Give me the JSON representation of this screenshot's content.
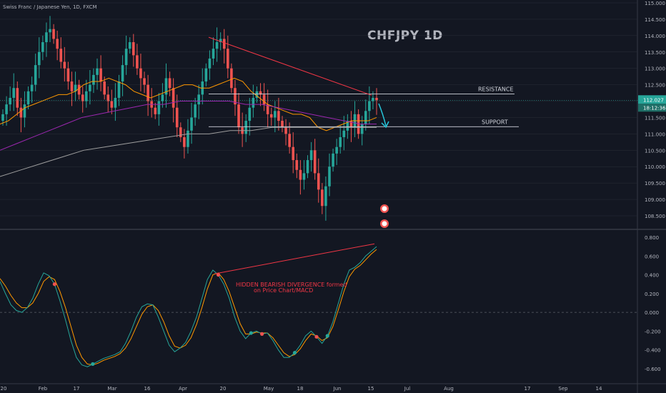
{
  "header": "Swiss Franc / Japanese Yen, 1D, FXCM",
  "overlay_title": "CHFJPY 1D",
  "colors": {
    "bg": "#131722",
    "up": "#26a69a",
    "down": "#ef5350",
    "grid": "#2a2e39",
    "text": "#b2b5be",
    "ema_fast": "#ff9800",
    "ema_mid": "#9c27b0",
    "ema_slow": "#9e9e9e",
    "macd": "#26a69a",
    "signal": "#ff9800",
    "trendline": "#f23645",
    "annot": "#f23645",
    "price_tag": "#26a69a",
    "arrow": "#26c6da"
  },
  "chart_data": [
    {
      "type": "candlestick",
      "title": "CHFJPY 1D",
      "ylim": [
        108.2,
        115.1
      ],
      "y_ticks": [
        "115.000",
        "114.500",
        "114.000",
        "113.500",
        "113.000",
        "112.500",
        "112.000",
        "111.500",
        "111.000",
        "110.500",
        "110.000",
        "109.500",
        "109.000",
        "108.500"
      ],
      "current_price": "112.027",
      "countdown": "18:12:36",
      "level_lines": [
        {
          "label": "RESISTANCE",
          "value": 112.22
        },
        {
          "label": "SUPPORT",
          "value": 111.22
        }
      ],
      "trendline": [
        [
          0.0,
          113.95
        ],
        [
          1.0,
          112.18
        ]
      ],
      "closes": [
        111.6,
        111.9,
        112.1,
        112.4,
        111.8,
        111.5,
        111.9,
        112.3,
        112.5,
        113.1,
        113.5,
        113.8,
        114.1,
        114.2,
        113.9,
        113.6,
        113.2,
        113.0,
        112.6,
        112.3,
        112.5,
        112.2,
        112.0,
        112.3,
        112.5,
        112.8,
        113.0,
        112.6,
        112.2,
        112.0,
        111.8,
        112.1,
        112.6,
        113.1,
        113.6,
        113.8,
        113.4,
        113.0,
        112.7,
        112.5,
        112.0,
        111.8,
        111.6,
        112.0,
        112.2,
        112.7,
        112.4,
        111.8,
        111.2,
        110.9,
        110.6,
        111.1,
        111.5,
        111.9,
        112.2,
        112.6,
        113.0,
        113.3,
        113.6,
        113.8,
        113.9,
        113.6,
        113.0,
        112.4,
        111.9,
        111.2,
        111.0,
        111.4,
        111.8,
        112.1,
        112.3,
        112.2,
        111.9,
        111.6,
        111.5,
        111.7,
        111.4,
        111.2,
        111.0,
        110.6,
        110.2,
        109.9,
        109.6,
        109.8,
        110.2,
        110.5,
        109.8,
        109.3,
        108.8,
        109.4,
        110.0,
        110.4,
        110.6,
        110.9,
        111.1,
        111.4,
        111.2,
        111.6,
        111.0,
        111.3,
        111.7,
        112.0,
        112.1,
        112.03
      ],
      "ema_fast": [
        111.3,
        111.4,
        111.6,
        111.8,
        111.9,
        112.0,
        112.1,
        112.2,
        112.2,
        112.3,
        112.5,
        112.6,
        112.6,
        112.7,
        112.6,
        112.5,
        112.3,
        112.2,
        112.1,
        112.2,
        112.3,
        112.4,
        112.5,
        112.5,
        112.4,
        112.4,
        112.5,
        112.6,
        112.7,
        112.6,
        112.3,
        112.1,
        111.9,
        111.8,
        111.7,
        111.6,
        111.6,
        111.5,
        111.2,
        111.1,
        111.2,
        111.3,
        111.4,
        111.4,
        111.4,
        111.5
      ],
      "ema_mid": [
        110.5,
        110.7,
        110.9,
        111.1,
        111.3,
        111.5,
        111.6,
        111.7,
        111.8,
        111.9,
        111.9,
        112.0,
        112.0,
        112.0,
        112.0,
        111.9,
        111.9,
        111.8,
        111.7,
        111.6,
        111.5,
        111.4,
        111.3,
        111.3
      ],
      "ema_slow": [
        109.7,
        109.9,
        110.1,
        110.3,
        110.5,
        110.6,
        110.7,
        110.8,
        110.9,
        111.0,
        111.0,
        111.1,
        111.1,
        111.2,
        111.2,
        111.2,
        111.2,
        111.2,
        111.2
      ]
    },
    {
      "type": "line",
      "name": "MACD",
      "ylim": [
        -0.66,
        0.86
      ],
      "y_ticks": [
        "0.800",
        "0.600",
        "0.400",
        "0.200",
        "0.000",
        "-0.200",
        "-0.400",
        "-0.600"
      ],
      "annotation": [
        "HIDDEN BEARISH DIVERGENCE formed",
        "on Price Chart/MACD"
      ],
      "macd": [
        0.33,
        0.2,
        0.08,
        0.02,
        0.0,
        0.05,
        0.15,
        0.3,
        0.42,
        0.39,
        0.3,
        0.12,
        -0.08,
        -0.3,
        -0.48,
        -0.56,
        -0.58,
        -0.55,
        -0.52,
        -0.49,
        -0.47,
        -0.45,
        -0.42,
        -0.33,
        -0.2,
        -0.05,
        0.06,
        0.09,
        0.08,
        -0.05,
        -0.2,
        -0.35,
        -0.42,
        -0.38,
        -0.32,
        -0.2,
        -0.05,
        0.15,
        0.35,
        0.45,
        0.4,
        0.3,
        0.15,
        -0.05,
        -0.2,
        -0.28,
        -0.22,
        -0.2,
        -0.23,
        -0.22,
        -0.3,
        -0.4,
        -0.48,
        -0.48,
        -0.43,
        -0.35,
        -0.25,
        -0.2,
        -0.26,
        -0.33,
        -0.25,
        -0.1,
        0.1,
        0.3,
        0.45,
        0.48,
        0.53,
        0.6,
        0.65,
        0.7
      ],
      "signal": [
        0.36,
        0.28,
        0.18,
        0.1,
        0.05,
        0.05,
        0.1,
        0.2,
        0.33,
        0.38,
        0.35,
        0.22,
        0.05,
        -0.15,
        -0.35,
        -0.48,
        -0.55,
        -0.56,
        -0.54,
        -0.51,
        -0.49,
        -0.47,
        -0.44,
        -0.38,
        -0.28,
        -0.15,
        -0.02,
        0.06,
        0.08,
        0.02,
        -0.1,
        -0.25,
        -0.36,
        -0.38,
        -0.35,
        -0.27,
        -0.13,
        0.05,
        0.25,
        0.4,
        0.42,
        0.35,
        0.22,
        0.05,
        -0.12,
        -0.23,
        -0.23,
        -0.21,
        -0.22,
        -0.22,
        -0.27,
        -0.35,
        -0.43,
        -0.47,
        -0.45,
        -0.39,
        -0.3,
        -0.23,
        -0.25,
        -0.3,
        -0.27,
        -0.15,
        0.03,
        0.22,
        0.38,
        0.46,
        0.5,
        0.56,
        0.62,
        0.67
      ],
      "divergence_line": [
        [
          0.0,
          0.41
        ],
        [
          1.0,
          0.73
        ]
      ]
    }
  ],
  "x_ticks": [
    "20",
    "Feb",
    "17",
    "Mar",
    "16",
    "Apr",
    "20",
    "May",
    "18",
    "Jun",
    "15",
    "Jul",
    "Aug",
    "17",
    "Sep",
    "14"
  ]
}
